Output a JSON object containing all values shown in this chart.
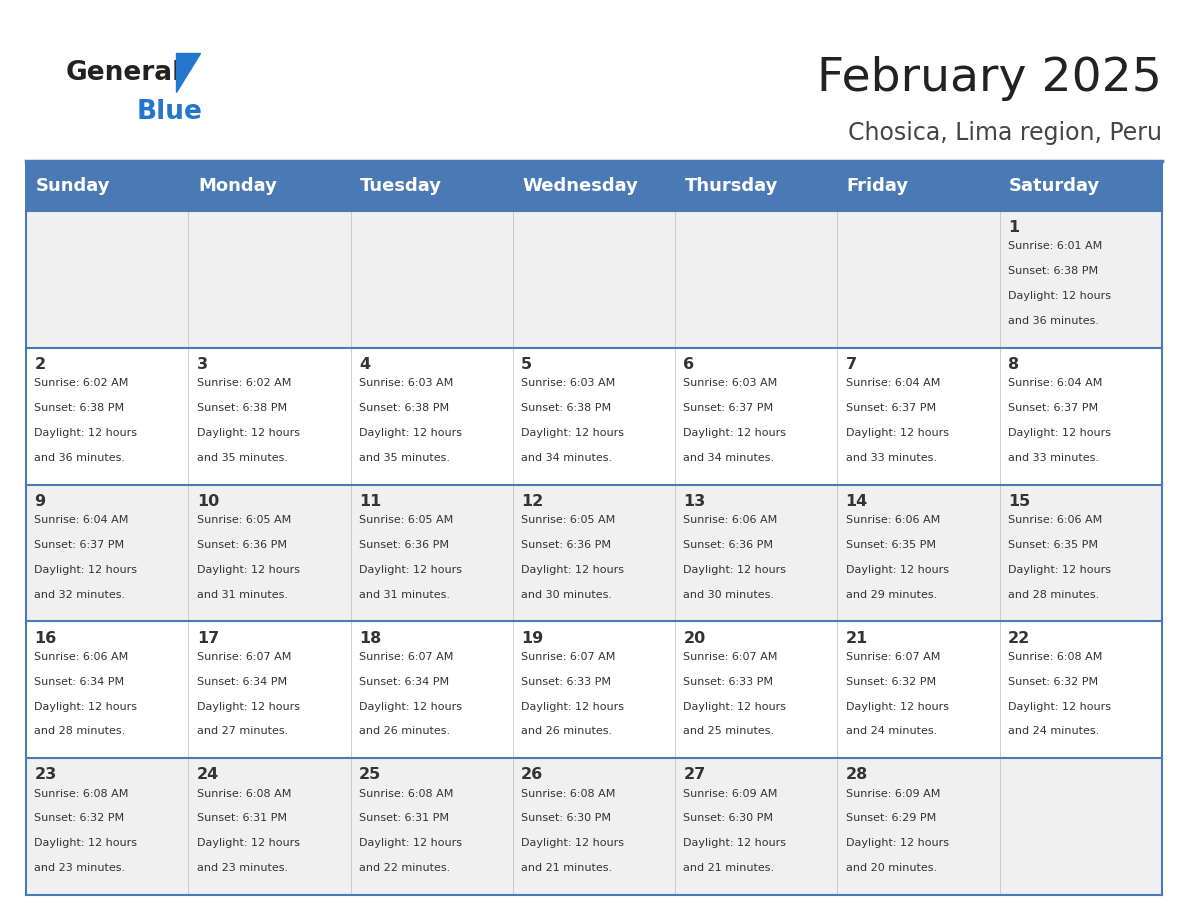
{
  "title": "February 2025",
  "subtitle": "Chosica, Lima region, Peru",
  "header_bg_color": "#4a7ab5",
  "header_text_color": "#ffffff",
  "day_headers": [
    "Sunday",
    "Monday",
    "Tuesday",
    "Wednesday",
    "Thursday",
    "Friday",
    "Saturday"
  ],
  "row_bg_even": "#f0f0f0",
  "row_bg_odd": "#ffffff",
  "cell_border_color": "#4a7ab5",
  "title_color": "#222222",
  "subtitle_color": "#444444",
  "day_num_color": "#333333",
  "info_color": "#333333",
  "logo_text_color": "#222222",
  "logo_blue_color": "#2277cc",
  "calendar_data": [
    [
      null,
      null,
      null,
      null,
      null,
      null,
      {
        "day": 1,
        "sunrise": "6:01 AM",
        "sunset": "6:38 PM",
        "daylight_line1": "Daylight: 12 hours",
        "daylight_line2": "and 36 minutes."
      }
    ],
    [
      {
        "day": 2,
        "sunrise": "6:02 AM",
        "sunset": "6:38 PM",
        "daylight_line1": "Daylight: 12 hours",
        "daylight_line2": "and 36 minutes."
      },
      {
        "day": 3,
        "sunrise": "6:02 AM",
        "sunset": "6:38 PM",
        "daylight_line1": "Daylight: 12 hours",
        "daylight_line2": "and 35 minutes."
      },
      {
        "day": 4,
        "sunrise": "6:03 AM",
        "sunset": "6:38 PM",
        "daylight_line1": "Daylight: 12 hours",
        "daylight_line2": "and 35 minutes."
      },
      {
        "day": 5,
        "sunrise": "6:03 AM",
        "sunset": "6:38 PM",
        "daylight_line1": "Daylight: 12 hours",
        "daylight_line2": "and 34 minutes."
      },
      {
        "day": 6,
        "sunrise": "6:03 AM",
        "sunset": "6:37 PM",
        "daylight_line1": "Daylight: 12 hours",
        "daylight_line2": "and 34 minutes."
      },
      {
        "day": 7,
        "sunrise": "6:04 AM",
        "sunset": "6:37 PM",
        "daylight_line1": "Daylight: 12 hours",
        "daylight_line2": "and 33 minutes."
      },
      {
        "day": 8,
        "sunrise": "6:04 AM",
        "sunset": "6:37 PM",
        "daylight_line1": "Daylight: 12 hours",
        "daylight_line2": "and 33 minutes."
      }
    ],
    [
      {
        "day": 9,
        "sunrise": "6:04 AM",
        "sunset": "6:37 PM",
        "daylight_line1": "Daylight: 12 hours",
        "daylight_line2": "and 32 minutes."
      },
      {
        "day": 10,
        "sunrise": "6:05 AM",
        "sunset": "6:36 PM",
        "daylight_line1": "Daylight: 12 hours",
        "daylight_line2": "and 31 minutes."
      },
      {
        "day": 11,
        "sunrise": "6:05 AM",
        "sunset": "6:36 PM",
        "daylight_line1": "Daylight: 12 hours",
        "daylight_line2": "and 31 minutes."
      },
      {
        "day": 12,
        "sunrise": "6:05 AM",
        "sunset": "6:36 PM",
        "daylight_line1": "Daylight: 12 hours",
        "daylight_line2": "and 30 minutes."
      },
      {
        "day": 13,
        "sunrise": "6:06 AM",
        "sunset": "6:36 PM",
        "daylight_line1": "Daylight: 12 hours",
        "daylight_line2": "and 30 minutes."
      },
      {
        "day": 14,
        "sunrise": "6:06 AM",
        "sunset": "6:35 PM",
        "daylight_line1": "Daylight: 12 hours",
        "daylight_line2": "and 29 minutes."
      },
      {
        "day": 15,
        "sunrise": "6:06 AM",
        "sunset": "6:35 PM",
        "daylight_line1": "Daylight: 12 hours",
        "daylight_line2": "and 28 minutes."
      }
    ],
    [
      {
        "day": 16,
        "sunrise": "6:06 AM",
        "sunset": "6:34 PM",
        "daylight_line1": "Daylight: 12 hours",
        "daylight_line2": "and 28 minutes."
      },
      {
        "day": 17,
        "sunrise": "6:07 AM",
        "sunset": "6:34 PM",
        "daylight_line1": "Daylight: 12 hours",
        "daylight_line2": "and 27 minutes."
      },
      {
        "day": 18,
        "sunrise": "6:07 AM",
        "sunset": "6:34 PM",
        "daylight_line1": "Daylight: 12 hours",
        "daylight_line2": "and 26 minutes."
      },
      {
        "day": 19,
        "sunrise": "6:07 AM",
        "sunset": "6:33 PM",
        "daylight_line1": "Daylight: 12 hours",
        "daylight_line2": "and 26 minutes."
      },
      {
        "day": 20,
        "sunrise": "6:07 AM",
        "sunset": "6:33 PM",
        "daylight_line1": "Daylight: 12 hours",
        "daylight_line2": "and 25 minutes."
      },
      {
        "day": 21,
        "sunrise": "6:07 AM",
        "sunset": "6:32 PM",
        "daylight_line1": "Daylight: 12 hours",
        "daylight_line2": "and 24 minutes."
      },
      {
        "day": 22,
        "sunrise": "6:08 AM",
        "sunset": "6:32 PM",
        "daylight_line1": "Daylight: 12 hours",
        "daylight_line2": "and 24 minutes."
      }
    ],
    [
      {
        "day": 23,
        "sunrise": "6:08 AM",
        "sunset": "6:32 PM",
        "daylight_line1": "Daylight: 12 hours",
        "daylight_line2": "and 23 minutes."
      },
      {
        "day": 24,
        "sunrise": "6:08 AM",
        "sunset": "6:31 PM",
        "daylight_line1": "Daylight: 12 hours",
        "daylight_line2": "and 23 minutes."
      },
      {
        "day": 25,
        "sunrise": "6:08 AM",
        "sunset": "6:31 PM",
        "daylight_line1": "Daylight: 12 hours",
        "daylight_line2": "and 22 minutes."
      },
      {
        "day": 26,
        "sunrise": "6:08 AM",
        "sunset": "6:30 PM",
        "daylight_line1": "Daylight: 12 hours",
        "daylight_line2": "and 21 minutes."
      },
      {
        "day": 27,
        "sunrise": "6:09 AM",
        "sunset": "6:30 PM",
        "daylight_line1": "Daylight: 12 hours",
        "daylight_line2": "and 21 minutes."
      },
      {
        "day": 28,
        "sunrise": "6:09 AM",
        "sunset": "6:29 PM",
        "daylight_line1": "Daylight: 12 hours",
        "daylight_line2": "and 20 minutes."
      },
      null
    ]
  ]
}
